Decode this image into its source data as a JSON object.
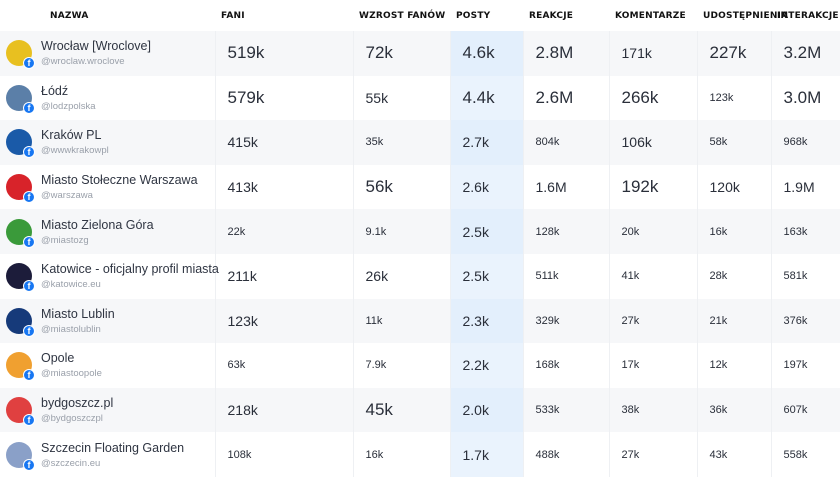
{
  "columns": [
    "NAZWA",
    "FANI",
    "WZROST FANÓW",
    "POSTY",
    "REAKCJE",
    "KOMENTARZE",
    "UDOSTĘPNIENIA",
    "INTERAKCJE"
  ],
  "profile_badge": "f",
  "colors": {
    "facebook": "#1877f2",
    "posty_highlight": "#eaf3fd",
    "row_alt": "#f6f7f9"
  },
  "rows": [
    {
      "name": "Wrocław [Wroclove]",
      "handle": "@wroclaw.wroclove",
      "avatar": "#e8c020",
      "values": [
        [
          "519k",
          3
        ],
        [
          "72k",
          3
        ],
        [
          "4.6k",
          3
        ],
        [
          "2.8M",
          3
        ],
        [
          "171k",
          2
        ],
        [
          "227k",
          3
        ],
        [
          "3.2M",
          3
        ]
      ]
    },
    {
      "name": "Łódź",
      "handle": "@lodzpolska",
      "avatar": "#5b7fa8",
      "values": [
        [
          "579k",
          3
        ],
        [
          "55k",
          2
        ],
        [
          "4.4k",
          3
        ],
        [
          "2.6M",
          3
        ],
        [
          "266k",
          3
        ],
        [
          "123k",
          1
        ],
        [
          "3.0M",
          3
        ]
      ]
    },
    {
      "name": "Kraków PL",
      "handle": "@wwwkrakowpl",
      "avatar": "#1a5aa8",
      "values": [
        [
          "415k",
          2
        ],
        [
          "35k",
          1
        ],
        [
          "2.7k",
          2
        ],
        [
          "804k",
          1
        ],
        [
          "106k",
          2
        ],
        [
          "58k",
          1
        ],
        [
          "968k",
          1
        ]
      ]
    },
    {
      "name": "Miasto Stołeczne Warszawa",
      "handle": "@warszawa",
      "avatar": "#d8232a",
      "values": [
        [
          "413k",
          2
        ],
        [
          "56k",
          3
        ],
        [
          "2.6k",
          2
        ],
        [
          "1.6M",
          2
        ],
        [
          "192k",
          3
        ],
        [
          "120k",
          2
        ],
        [
          "1.9M",
          2
        ]
      ]
    },
    {
      "name": "Miasto Zielona Góra",
      "handle": "@miastozg",
      "avatar": "#3a9a3a",
      "values": [
        [
          "22k",
          1
        ],
        [
          "9.1k",
          1
        ],
        [
          "2.5k",
          2
        ],
        [
          "128k",
          1
        ],
        [
          "20k",
          1
        ],
        [
          "16k",
          1
        ],
        [
          "163k",
          1
        ]
      ]
    },
    {
      "name": "Katowice - oficjalny profil miasta",
      "handle": "@katowice.eu",
      "avatar": "#1c1c3a",
      "values": [
        [
          "211k",
          2
        ],
        [
          "26k",
          2
        ],
        [
          "2.5k",
          2
        ],
        [
          "511k",
          1
        ],
        [
          "41k",
          1
        ],
        [
          "28k",
          1
        ],
        [
          "581k",
          1
        ]
      ]
    },
    {
      "name": "Miasto Lublin",
      "handle": "@miastolublin",
      "avatar": "#163a7a",
      "values": [
        [
          "123k",
          2
        ],
        [
          "11k",
          1
        ],
        [
          "2.3k",
          2
        ],
        [
          "329k",
          1
        ],
        [
          "27k",
          1
        ],
        [
          "21k",
          1
        ],
        [
          "376k",
          1
        ]
      ]
    },
    {
      "name": "Opole",
      "handle": "@miastoopole",
      "avatar": "#f0a030",
      "values": [
        [
          "63k",
          1
        ],
        [
          "7.9k",
          1
        ],
        [
          "2.2k",
          2
        ],
        [
          "168k",
          1
        ],
        [
          "17k",
          1
        ],
        [
          "12k",
          1
        ],
        [
          "197k",
          1
        ]
      ]
    },
    {
      "name": "bydgoszcz.pl",
      "handle": "@bydgoszczpl",
      "avatar": "#e04040",
      "values": [
        [
          "218k",
          2
        ],
        [
          "45k",
          3
        ],
        [
          "2.0k",
          2
        ],
        [
          "533k",
          1
        ],
        [
          "38k",
          1
        ],
        [
          "36k",
          1
        ],
        [
          "607k",
          1
        ]
      ]
    },
    {
      "name": "Szczecin Floating Garden",
      "handle": "@szczecin.eu",
      "avatar": "#8aa0c8",
      "values": [
        [
          "108k",
          1
        ],
        [
          "16k",
          1
        ],
        [
          "1.7k",
          2
        ],
        [
          "488k",
          1
        ],
        [
          "27k",
          1
        ],
        [
          "43k",
          1
        ],
        [
          "558k",
          1
        ]
      ]
    }
  ]
}
